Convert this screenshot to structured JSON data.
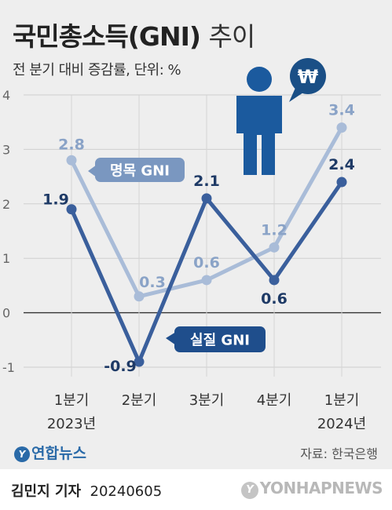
{
  "header": {
    "title": "국민총소득(GNI)",
    "title_suffix": "추이",
    "subtitle": "전 분기 대비 증감률, 단위: %"
  },
  "chart_data": {
    "type": "line",
    "categories": [
      "1분기",
      "2분기",
      "3분기",
      "4분기",
      "1분기"
    ],
    "category_years": [
      "2023년",
      "",
      "",
      "",
      "2024년"
    ],
    "yticks": [
      -1,
      0,
      1,
      2,
      3,
      4
    ],
    "ylim": [
      -1,
      4
    ],
    "grid": true,
    "series": [
      {
        "name": "명목 GNI",
        "values": [
          2.8,
          0.3,
          0.6,
          1.2,
          3.4
        ],
        "labels": [
          "2.8",
          "0.3",
          "0.6",
          "1.2",
          "3.4"
        ],
        "color": "#a9bcd8"
      },
      {
        "name": "실질 GNI",
        "values": [
          1.9,
          -0.9,
          2.1,
          0.6,
          2.4
        ],
        "labels": [
          "1.9",
          "-0.9",
          "2.1",
          "0.6",
          "2.4"
        ],
        "color": "#3a5f9c"
      }
    ]
  },
  "illustration": {
    "icon": "person-with-won-speech-bubble-icon",
    "bubble_text": "₩",
    "person_color": "#1b5a9e",
    "bubble_color": "#1a4f86"
  },
  "colors": {
    "background": "#eeeeee",
    "label_light": "#8aa3c7",
    "label_dark": "#1e3a66",
    "tag_light": "#7a97c0",
    "tag_dark": "#1f4e8c"
  },
  "footer": {
    "logo_text": "연합뉴스",
    "source": "자료: 한국은행",
    "reporter": "김민지 기자",
    "date": "20240605",
    "watermark": "YONHAPNEWS"
  }
}
